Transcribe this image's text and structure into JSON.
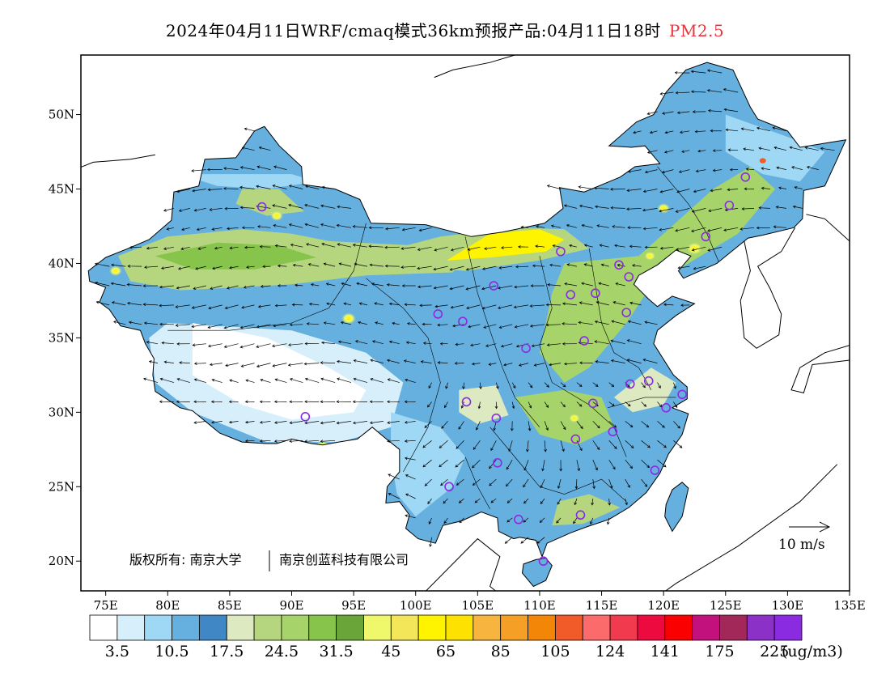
{
  "title": {
    "main": "2024年04月11日WRF/cmaq模式36km预报产品:04月11日18时",
    "variable": "PM2.5"
  },
  "map": {
    "lon_range": [
      73,
      135
    ],
    "lat_range": [
      18,
      54
    ],
    "x_ticks": [
      "75E",
      "80E",
      "85E",
      "90E",
      "95E",
      "100E",
      "105E",
      "110E",
      "115E",
      "120E",
      "125E",
      "130E",
      "135E"
    ],
    "x_tick_values": [
      75,
      80,
      85,
      90,
      95,
      100,
      105,
      110,
      115,
      120,
      125,
      130,
      135
    ],
    "y_ticks": [
      "20N",
      "25N",
      "30N",
      "35N",
      "40N",
      "45N",
      "50N"
    ],
    "y_tick_values": [
      20,
      25,
      30,
      35,
      40,
      45,
      50
    ]
  },
  "wind_reference": {
    "label": "10  m/s"
  },
  "copyright": {
    "label": "版权所有: 南京大学",
    "label2": "南京创蓝科技有限公司"
  },
  "colorbar": {
    "unit": "(ug/m3)",
    "labels": [
      "3.5",
      "10.5",
      "17.5",
      "24.5",
      "31.5",
      "45",
      "65",
      "85",
      "105",
      "124",
      "141",
      "175",
      "225"
    ],
    "colors": [
      "#ffffff",
      "#d6effb",
      "#9fd8f5",
      "#66b0e0",
      "#3f88c5",
      "#dde9c0",
      "#b5d67e",
      "#a6d46a",
      "#86c44b",
      "#6aa539",
      "#eef86a",
      "#f3e659",
      "#fff400",
      "#fde100",
      "#f7b540",
      "#f59f27",
      "#f38507",
      "#f15a29",
      "#fb6b6b",
      "#f23a4f",
      "#ed0a3f",
      "#fb0000",
      "#c2117c",
      "#a2285a",
      "#8b31c7",
      "#8a2be2"
    ]
  },
  "cities": [
    {
      "lon": 87.6,
      "lat": 43.8
    },
    {
      "lon": 91.1,
      "lat": 29.7
    },
    {
      "lon": 101.8,
      "lat": 36.6
    },
    {
      "lon": 103.8,
      "lat": 36.1
    },
    {
      "lon": 106.3,
      "lat": 38.5
    },
    {
      "lon": 111.7,
      "lat": 40.8
    },
    {
      "lon": 116.4,
      "lat": 39.9
    },
    {
      "lon": 117.2,
      "lat": 39.1
    },
    {
      "lon": 114.5,
      "lat": 38.0
    },
    {
      "lon": 112.5,
      "lat": 37.9
    },
    {
      "lon": 117.0,
      "lat": 36.7
    },
    {
      "lon": 113.6,
      "lat": 34.8
    },
    {
      "lon": 108.9,
      "lat": 34.3
    },
    {
      "lon": 123.4,
      "lat": 41.8
    },
    {
      "lon": 125.3,
      "lat": 43.9
    },
    {
      "lon": 126.6,
      "lat": 45.8
    },
    {
      "lon": 118.8,
      "lat": 32.1
    },
    {
      "lon": 117.3,
      "lat": 31.9
    },
    {
      "lon": 121.5,
      "lat": 31.2
    },
    {
      "lon": 120.2,
      "lat": 30.3
    },
    {
      "lon": 114.3,
      "lat": 30.6
    },
    {
      "lon": 112.9,
      "lat": 28.2
    },
    {
      "lon": 115.9,
      "lat": 28.7
    },
    {
      "lon": 119.3,
      "lat": 26.1
    },
    {
      "lon": 113.3,
      "lat": 23.1
    },
    {
      "lon": 108.3,
      "lat": 22.8
    },
    {
      "lon": 110.3,
      "lat": 20.0
    },
    {
      "lon": 106.6,
      "lat": 26.6
    },
    {
      "lon": 102.7,
      "lat": 25.0
    },
    {
      "lon": 104.1,
      "lat": 30.7
    },
    {
      "lon": 106.5,
      "lat": 29.6
    }
  ]
}
